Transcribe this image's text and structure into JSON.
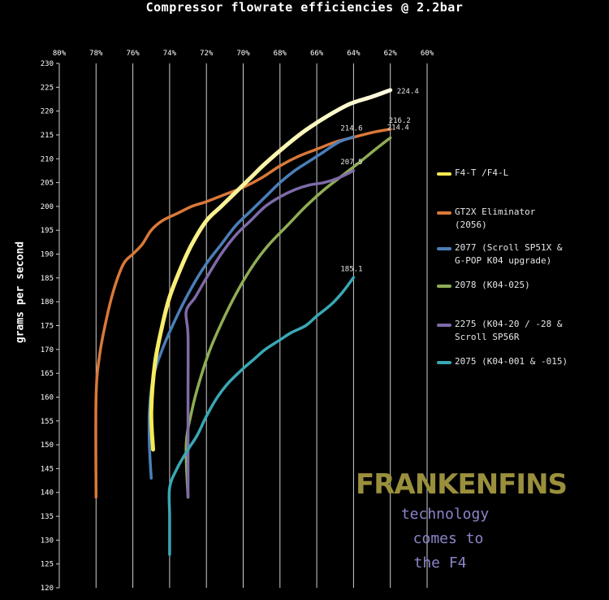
{
  "chart_data": {
    "type": "line",
    "title": "Compressor flowrate efficiencies @ 2.2bar",
    "xlabel": "",
    "ylabel": "grams per second",
    "x_ticks": [
      "80%",
      "78%",
      "76%",
      "74%",
      "72%",
      "70%",
      "68%",
      "66%",
      "64%",
      "62%",
      "60%"
    ],
    "xlim": [
      80,
      60
    ],
    "ylim": [
      120,
      230
    ],
    "y_ticks": [
      120,
      125,
      130,
      135,
      140,
      145,
      150,
      155,
      160,
      165,
      170,
      175,
      180,
      185,
      190,
      195,
      200,
      205,
      210,
      215,
      220,
      225,
      230
    ],
    "grid": "vertical",
    "legend_position": "right",
    "series": [
      {
        "name": "F4-T /F4-L",
        "color": "#f5e94e",
        "color_end": "#fffbe0",
        "points": [
          [
            74.9,
            149
          ],
          [
            75.0,
            157
          ],
          [
            74.8,
            167
          ],
          [
            74.4,
            175
          ],
          [
            74.0,
            181
          ],
          [
            73.4,
            187
          ],
          [
            72.8,
            192
          ],
          [
            72.0,
            197
          ],
          [
            71.2,
            200
          ],
          [
            70.4,
            203
          ],
          [
            69.6,
            206
          ],
          [
            68.8,
            209
          ],
          [
            67.6,
            213
          ],
          [
            66.6,
            216
          ],
          [
            65.4,
            219
          ],
          [
            64.2,
            221.5
          ],
          [
            63.0,
            223
          ],
          [
            62.0,
            224.4
          ]
        ],
        "end_label": "224.4"
      },
      {
        "name": "GT2X Eliminator\n(2056)",
        "color": "#d9783a",
        "points": [
          [
            78.0,
            139
          ],
          [
            78.0,
            160
          ],
          [
            77.8,
            169
          ],
          [
            77.4,
            177
          ],
          [
            77.0,
            183
          ],
          [
            76.5,
            188
          ],
          [
            76.0,
            190
          ],
          [
            75.5,
            192
          ],
          [
            75.0,
            195
          ],
          [
            74.4,
            197
          ],
          [
            73.6,
            198.5
          ],
          [
            72.8,
            200
          ],
          [
            72.0,
            201
          ],
          [
            71.0,
            202.5
          ],
          [
            70.0,
            204
          ],
          [
            69.0,
            206
          ],
          [
            68.0,
            208.5
          ],
          [
            67.0,
            210.5
          ],
          [
            66.0,
            212
          ],
          [
            65.0,
            213.5
          ],
          [
            64.0,
            214.5
          ],
          [
            63.0,
            215.5
          ],
          [
            62.0,
            216.2
          ]
        ],
        "end_label": "216.2"
      },
      {
        "name": "2077 (Scroll SP51X &\nG-POP K04 upgrade)",
        "color": "#4a7fb8",
        "points": [
          [
            75.0,
            143
          ],
          [
            75.1,
            150
          ],
          [
            75.1,
            157
          ],
          [
            74.9,
            164
          ],
          [
            74.4,
            170
          ],
          [
            73.6,
            177
          ],
          [
            72.8,
            183
          ],
          [
            72.0,
            188
          ],
          [
            71.2,
            192
          ],
          [
            70.4,
            196
          ],
          [
            69.6,
            199
          ],
          [
            68.8,
            202
          ],
          [
            68.0,
            205
          ],
          [
            67.2,
            207.5
          ],
          [
            66.4,
            209.5
          ],
          [
            65.6,
            211.5
          ],
          [
            64.8,
            213.5
          ],
          [
            64.0,
            214.6
          ]
        ],
        "end_label": "214.6"
      },
      {
        "name": "2078 (K04-025)",
        "color": "#8fad55",
        "points": [
          [
            73.0,
            139
          ],
          [
            73.1,
            150
          ],
          [
            72.8,
            157
          ],
          [
            72.4,
            163
          ],
          [
            71.8,
            170
          ],
          [
            71.0,
            177
          ],
          [
            70.2,
            183
          ],
          [
            69.4,
            188
          ],
          [
            68.6,
            192
          ],
          [
            67.6,
            196
          ],
          [
            66.6,
            200
          ],
          [
            65.6,
            203.5
          ],
          [
            64.6,
            206.5
          ],
          [
            63.6,
            209.5
          ],
          [
            62.8,
            212
          ],
          [
            62.0,
            214.4
          ]
        ],
        "end_label": "214.4"
      },
      {
        "name": "2275 (K04-20 / -28 &\nScroll SP56R",
        "color": "#7e6aa8",
        "points": [
          [
            73.0,
            139
          ],
          [
            73.0,
            160
          ],
          [
            73.0,
            173
          ],
          [
            73.1,
            178
          ],
          [
            72.6,
            181
          ],
          [
            72.0,
            185
          ],
          [
            71.2,
            190
          ],
          [
            70.4,
            194
          ],
          [
            69.6,
            197
          ],
          [
            68.8,
            200
          ],
          [
            68.0,
            202
          ],
          [
            67.2,
            203.5
          ],
          [
            66.4,
            204.5
          ],
          [
            65.6,
            205
          ],
          [
            64.8,
            206
          ],
          [
            64.0,
            207.5
          ]
        ],
        "end_label": "207.5"
      },
      {
        "name": "2075 (K04-001 & -015)",
        "color": "#3aa7b5",
        "points": [
          [
            74.0,
            127
          ],
          [
            74.0,
            135
          ],
          [
            74.0,
            141
          ],
          [
            73.6,
            145
          ],
          [
            73.0,
            149
          ],
          [
            72.5,
            152
          ],
          [
            72.0,
            156
          ],
          [
            71.4,
            160
          ],
          [
            70.8,
            163
          ],
          [
            70.0,
            166
          ],
          [
            69.4,
            168
          ],
          [
            68.8,
            170
          ],
          [
            68.0,
            172
          ],
          [
            67.4,
            173.5
          ],
          [
            66.6,
            175
          ],
          [
            66.0,
            177
          ],
          [
            65.2,
            179.5
          ],
          [
            64.6,
            182
          ],
          [
            64.0,
            185.1
          ]
        ],
        "end_label": "185.1"
      }
    ]
  },
  "logo": {
    "text": "FRANKENFINS",
    "tagline_1": "technology",
    "tagline_2": "comes to",
    "tagline_3": "the F4"
  }
}
